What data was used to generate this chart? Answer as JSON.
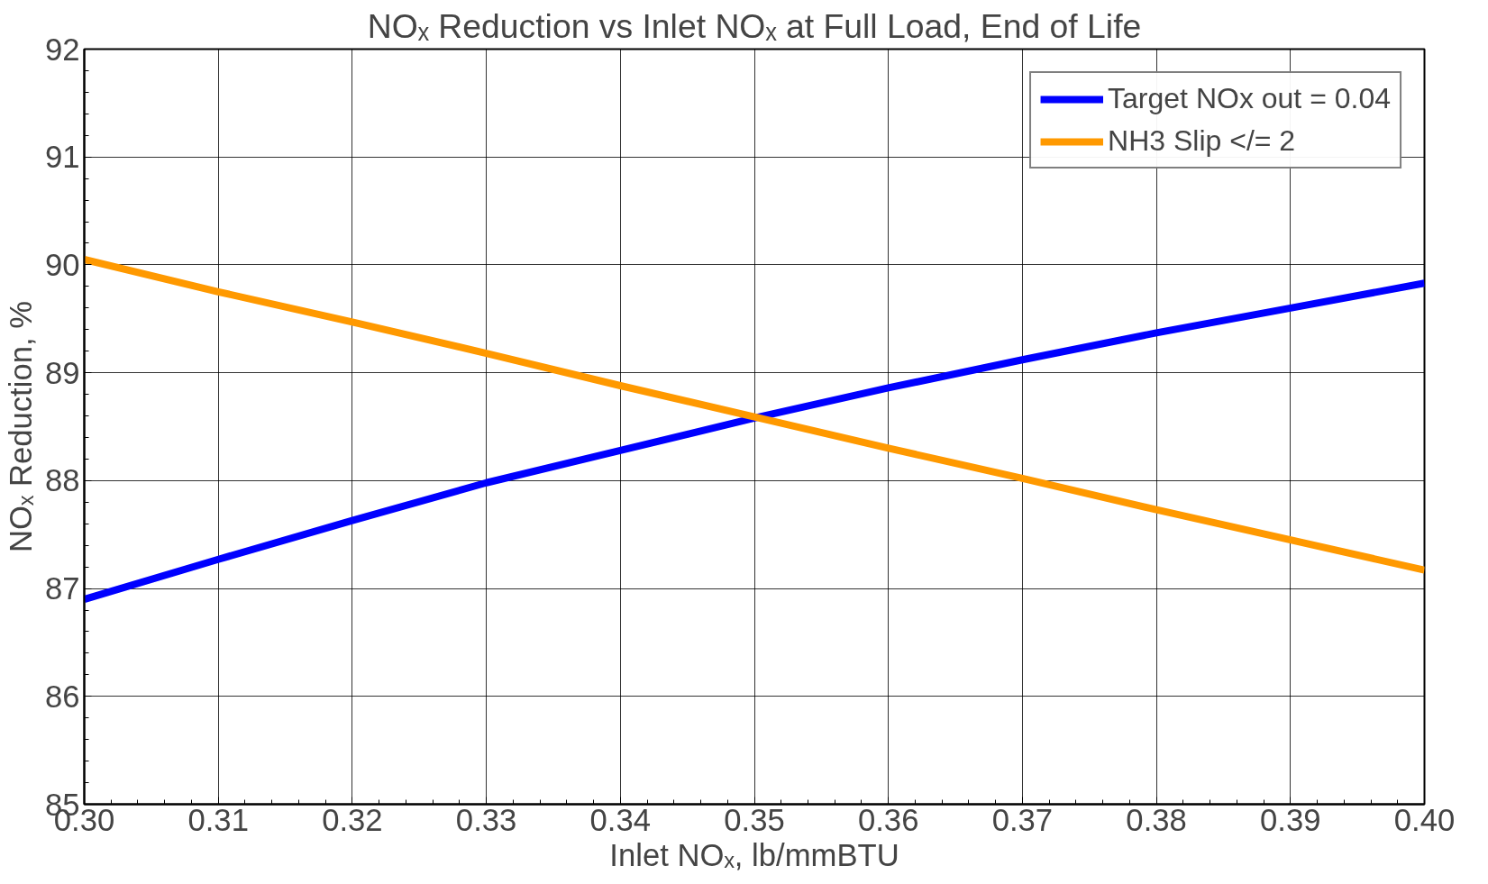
{
  "chart_data": {
    "type": "line",
    "title": "NOₓ Reduction vs Inlet NOₓ at Full Load, End of Life",
    "xlabel": "Inlet NOₓ, lb/mmBTU",
    "ylabel": "NOₓ Reduction, %",
    "x": [
      0.3,
      0.31,
      0.32,
      0.33,
      0.34,
      0.35,
      0.36,
      0.37,
      0.38,
      0.39,
      0.4
    ],
    "series": [
      {
        "name": "Target NOx out = 0.04",
        "color": "#0000ff",
        "values": [
          86.9,
          87.27,
          87.63,
          87.98,
          88.28,
          88.58,
          88.86,
          89.12,
          89.37,
          89.6,
          89.83
        ]
      },
      {
        "name": "NH3 Slip </= 2",
        "color": "#ff9900",
        "values": [
          90.05,
          89.75,
          89.47,
          89.18,
          88.88,
          88.59,
          88.3,
          88.02,
          87.73,
          87.45,
          87.17
        ]
      }
    ],
    "xlim": [
      0.3,
      0.4
    ],
    "xticks": [
      {
        "value": 0.3,
        "label": "0.30"
      },
      {
        "value": 0.31,
        "label": "0.31"
      },
      {
        "value": 0.32,
        "label": "0.32"
      },
      {
        "value": 0.33,
        "label": "0.33"
      },
      {
        "value": 0.34,
        "label": "0.34"
      },
      {
        "value": 0.35,
        "label": "0.35"
      },
      {
        "value": 0.36,
        "label": "0.36"
      },
      {
        "value": 0.37,
        "label": "0.37"
      },
      {
        "value": 0.38,
        "label": "0.38"
      },
      {
        "value": 0.39,
        "label": "0.39"
      },
      {
        "value": 0.4,
        "label": "0.40"
      }
    ],
    "ylim": [
      85,
      92
    ],
    "yticks": [
      85,
      86,
      87,
      88,
      89,
      90,
      91,
      92
    ],
    "grid": true,
    "legend": "top right",
    "marker": "none",
    "line_style": "solid"
  }
}
